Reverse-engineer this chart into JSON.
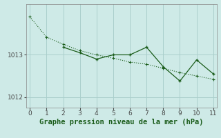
{
  "line1_x": [
    0,
    1,
    2,
    3,
    4,
    5,
    6,
    7,
    8,
    9,
    10,
    11
  ],
  "line1_y": [
    1013.9,
    1013.42,
    1013.25,
    1013.1,
    1013.0,
    1012.92,
    1012.83,
    1012.78,
    1012.68,
    1012.58,
    1012.5,
    1012.42
  ],
  "line2_x": [
    2,
    3,
    4,
    5,
    6,
    7,
    8,
    9,
    10,
    11
  ],
  "line2_y": [
    1013.18,
    1013.05,
    1012.9,
    1013.0,
    1013.0,
    1013.18,
    1012.72,
    1012.38,
    1012.88,
    1012.55
  ],
  "xlim": [
    -0.2,
    11.2
  ],
  "ylim": [
    1011.75,
    1014.2
  ],
  "yticks": [
    1012,
    1013
  ],
  "xticks": [
    0,
    1,
    2,
    3,
    4,
    5,
    6,
    7,
    8,
    9,
    10,
    11
  ],
  "xlabel": "Graphe pression niveau de la mer (hPa)",
  "line_color": "#1a5c1a",
  "bg_color": "#ceeae7",
  "grid_color": "#aacfcc",
  "tick_color": "#444444",
  "label_color": "#1a5c1a",
  "label_fontsize": 7.5
}
